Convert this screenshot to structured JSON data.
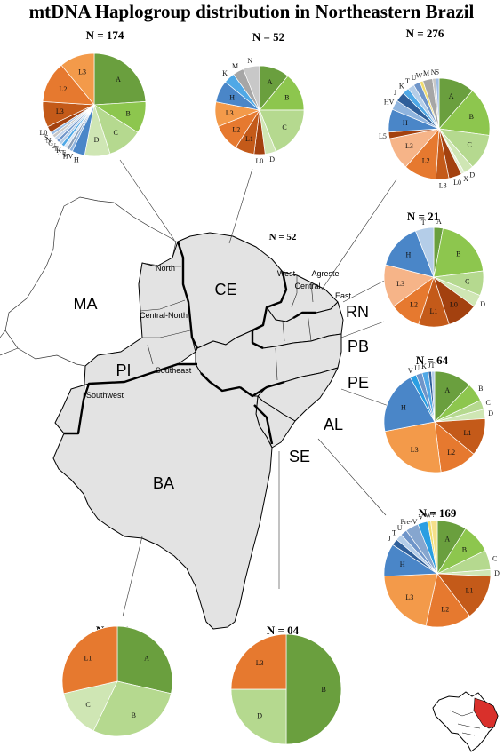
{
  "title": "mtDNA Haplogroup distribution in Northeastern Brazil",
  "map_center_n": "N = 52",
  "states": {
    "MA": "MA",
    "CE": "CE",
    "PI": "PI",
    "RN": "RN",
    "PB": "PB",
    "PE": "PE",
    "AL": "AL",
    "SE": "SE",
    "BA": "BA"
  },
  "regions": {
    "north": "North",
    "central_north": "Central-North",
    "southeast": "Southeast",
    "southwest": "Southwest",
    "west": "West",
    "central": "Central",
    "agreste": "Agreste",
    "east": "East"
  },
  "colors": {
    "A": "#6a9f3e",
    "B": "#8dc64e",
    "C": "#b5d98f",
    "D": "#cfe6b4",
    "X": "#e4efd6",
    "L0": "#a3410f",
    "L1": "#c45a19",
    "L2": "#e6792f",
    "L3": "#f39a4a",
    "L3b": "#f6b488",
    "H": "#4a86c8",
    "HV": "#8fb4de",
    "J": "#2f5f9a",
    "T": "#b4cde8",
    "U": "#6f95c9",
    "K": "#4fa8e6",
    "M": "#a6a6a6",
    "N": "#c8c8c8",
    "W": "#f0dc6e",
    "V": "#2a9ee2",
    "JT": "#d6e4f3",
    "I": "#8a9fb8",
    "R": "#7fa0c8",
    "S": "#9cbde4",
    "G": "#c4d6ec",
    "PreV": "#86a6cf",
    "Q": "#f5e08a",
    "E": "#55a3c7",
    "H2": "#3d78c0"
  },
  "chart_data": [
    {
      "type": "pie",
      "id": "pie-ma",
      "n": "N = 174",
      "label_size": 8,
      "slices": [
        {
          "label": "A",
          "value": 24,
          "color": "A"
        },
        {
          "label": "B",
          "value": 10,
          "color": "B"
        },
        {
          "label": "C",
          "value": 11,
          "color": "C"
        },
        {
          "label": "D",
          "value": 8,
          "color": "D"
        },
        {
          "label": "H",
          "value": 4,
          "color": "H"
        },
        {
          "label": "HV",
          "value": 1,
          "color": "HV"
        },
        {
          "label": "I",
          "value": 1,
          "color": "I"
        },
        {
          "label": "JT",
          "value": 1,
          "color": "JT"
        },
        {
          "label": "K",
          "value": 1,
          "color": "K"
        },
        {
          "label": "T",
          "value": 1,
          "color": "T"
        },
        {
          "label": "U",
          "value": 1,
          "color": "U"
        },
        {
          "label": "G",
          "value": 1,
          "color": "G"
        },
        {
          "label": "N",
          "value": 1,
          "color": "N"
        },
        {
          "label": "S",
          "value": 1,
          "color": "S"
        },
        {
          "label": "L0",
          "value": 2,
          "color": "L0"
        },
        {
          "label": "L3",
          "value": 8,
          "color": "L1"
        },
        {
          "label": "L2",
          "value": 13,
          "color": "L2"
        },
        {
          "label": "L3",
          "value": 11,
          "color": "L3"
        }
      ]
    },
    {
      "type": "pie",
      "id": "pie-ce",
      "n": "N = 52",
      "label_size": 8,
      "slices": [
        {
          "label": "A",
          "value": 11,
          "color": "A"
        },
        {
          "label": "B",
          "value": 14,
          "color": "B"
        },
        {
          "label": "C",
          "value": 19,
          "color": "C"
        },
        {
          "label": "D",
          "value": 4,
          "color": "D"
        },
        {
          "label": "L0",
          "value": 4,
          "color": "L0"
        },
        {
          "label": "L1",
          "value": 7,
          "color": "L1"
        },
        {
          "label": "L2",
          "value": 10,
          "color": "L2"
        },
        {
          "label": "L3",
          "value": 9,
          "color": "L3"
        },
        {
          "label": "H",
          "value": 8,
          "color": "H"
        },
        {
          "label": "K",
          "value": 4,
          "color": "K"
        },
        {
          "label": "M",
          "value": 4,
          "color": "M"
        },
        {
          "label": "N",
          "value": 6,
          "color": "N"
        }
      ]
    },
    {
      "type": "pie",
      "id": "pie-rn",
      "n": "N = 276",
      "label_size": 7,
      "slices": [
        {
          "label": "A",
          "value": 11,
          "color": "A"
        },
        {
          "label": "B",
          "value": 15,
          "color": "B"
        },
        {
          "label": "C",
          "value": 11,
          "color": "C"
        },
        {
          "label": "D",
          "value": 3,
          "color": "D"
        },
        {
          "label": "X",
          "value": 1,
          "color": "X"
        },
        {
          "label": "L0",
          "value": 4,
          "color": "L0"
        },
        {
          "label": "L3",
          "value": 4,
          "color": "L1"
        },
        {
          "label": "L2",
          "value": 10,
          "color": "L2"
        },
        {
          "label": "L3",
          "value": 10,
          "color": "L3b"
        },
        {
          "label": "L5",
          "value": 2,
          "color": "L0"
        },
        {
          "label": "H",
          "value": 7,
          "color": "H"
        },
        {
          "label": "HV",
          "value": 3,
          "color": "HV"
        },
        {
          "label": "J",
          "value": 3,
          "color": "J"
        },
        {
          "label": "K",
          "value": 2,
          "color": "K"
        },
        {
          "label": "T",
          "value": 2,
          "color": "T"
        },
        {
          "label": "U",
          "value": 2,
          "color": "U"
        },
        {
          "label": "W",
          "value": 1,
          "color": "W"
        },
        {
          "label": "M",
          "value": 3,
          "color": "M"
        },
        {
          "label": "N",
          "value": 1,
          "color": "N"
        },
        {
          "label": "S",
          "value": 1,
          "color": "S"
        }
      ]
    },
    {
      "type": "pie",
      "id": "pie-pb",
      "n": "N = 21",
      "label_size": 8,
      "slices": [
        {
          "label": "A",
          "value": 3,
          "color": "A"
        },
        {
          "label": "B",
          "value": 20,
          "color": "B"
        },
        {
          "label": "C",
          "value": 8,
          "color": "C"
        },
        {
          "label": "D",
          "value": 4,
          "color": "D"
        },
        {
          "label": "L0",
          "value": 10,
          "color": "L0"
        },
        {
          "label": "L1",
          "value": 10,
          "color": "L1"
        },
        {
          "label": "L2",
          "value": 10,
          "color": "L2"
        },
        {
          "label": "L3",
          "value": 14,
          "color": "L3b"
        },
        {
          "label": "H",
          "value": 15,
          "color": "H"
        },
        {
          "label": "T",
          "value": 6,
          "color": "T"
        }
      ]
    },
    {
      "type": "pie",
      "id": "pie-pe",
      "n": "N = 64",
      "label_size": 8,
      "slices": [
        {
          "label": "A",
          "value": 12,
          "color": "A"
        },
        {
          "label": "B",
          "value": 6,
          "color": "B"
        },
        {
          "label": "C",
          "value": 3,
          "color": "C"
        },
        {
          "label": "D",
          "value": 3,
          "color": "D"
        },
        {
          "label": "L1",
          "value": 12,
          "color": "L1"
        },
        {
          "label": "L2",
          "value": 12,
          "color": "L2"
        },
        {
          "label": "L3",
          "value": 24,
          "color": "L3"
        },
        {
          "label": "H",
          "value": 20,
          "color": "H"
        },
        {
          "label": "V",
          "value": 2,
          "color": "V"
        },
        {
          "label": "U",
          "value": 2,
          "color": "U"
        },
        {
          "label": "K",
          "value": 2,
          "color": "K"
        },
        {
          "label": "J",
          "value": 1,
          "color": "J"
        },
        {
          "label": "T",
          "value": 1,
          "color": "T"
        }
      ]
    },
    {
      "type": "pie",
      "id": "pie-al",
      "n": "N = 169",
      "label_size": 8,
      "slices": [
        {
          "label": "A",
          "value": 9,
          "color": "A"
        },
        {
          "label": "B",
          "value": 9,
          "color": "B"
        },
        {
          "label": "C",
          "value": 6,
          "color": "C"
        },
        {
          "label": "D",
          "value": 2,
          "color": "D"
        },
        {
          "label": "L1",
          "value": 14,
          "color": "L1"
        },
        {
          "label": "L2",
          "value": 14,
          "color": "L2"
        },
        {
          "label": "L3",
          "value": 21,
          "color": "L3"
        },
        {
          "label": "H",
          "value": 10,
          "color": "H"
        },
        {
          "label": "J",
          "value": 2,
          "color": "J"
        },
        {
          "label": "T",
          "value": 2,
          "color": "T"
        },
        {
          "label": "U",
          "value": 2,
          "color": "U"
        },
        {
          "label": "Pre-V",
          "value": 4,
          "color": "PreV"
        },
        {
          "label": "V",
          "value": 3,
          "color": "V"
        },
        {
          "label": "W",
          "value": 1,
          "color": "W"
        },
        {
          "label": "?",
          "value": 2,
          "color": "Q"
        }
      ]
    },
    {
      "type": "pie",
      "id": "pie-ba",
      "n": "N = 07",
      "label_size": 8,
      "slices": [
        {
          "label": "A",
          "value": 2,
          "color": "A"
        },
        {
          "label": "B",
          "value": 2,
          "color": "C"
        },
        {
          "label": "C",
          "value": 1,
          "color": "D"
        },
        {
          "label": "L1",
          "value": 2,
          "color": "L2"
        }
      ]
    },
    {
      "type": "pie",
      "id": "pie-se",
      "n": "N = 04",
      "label_size": 8,
      "slices": [
        {
          "label": "B",
          "value": 2,
          "color": "A"
        },
        {
          "label": "D",
          "value": 1,
          "color": "C"
        },
        {
          "label": "L3",
          "value": 1,
          "color": "L2"
        }
      ]
    }
  ]
}
